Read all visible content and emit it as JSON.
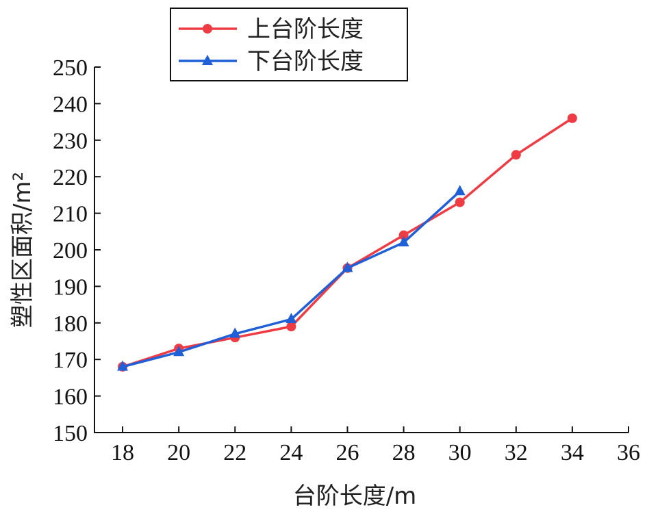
{
  "chart_data": {
    "type": "line",
    "xlabel": "台阶长度/m",
    "ylabel": "塑性区面积/m²",
    "xlim": [
      17,
      36
    ],
    "ylim": [
      150,
      250
    ],
    "xticks": [
      18,
      20,
      22,
      24,
      26,
      28,
      30,
      32,
      34,
      36
    ],
    "yticks": [
      150,
      160,
      170,
      180,
      190,
      200,
      210,
      220,
      230,
      240,
      250
    ],
    "grid": false,
    "legend_position": "top-left",
    "series": [
      {
        "name": "上台阶长度",
        "color": "#ef3b44",
        "marker": "circle",
        "x": [
          18,
          20,
          22,
          24,
          26,
          28,
          30,
          32,
          34
        ],
        "y": [
          168,
          173,
          176,
          179,
          195,
          204,
          213,
          226,
          236
        ]
      },
      {
        "name": "下台阶长度",
        "color": "#1f5fd8",
        "marker": "triangle",
        "x": [
          18,
          20,
          22,
          24,
          26,
          28,
          30
        ],
        "y": [
          168,
          172,
          177,
          181,
          195,
          202,
          216
        ]
      }
    ]
  }
}
